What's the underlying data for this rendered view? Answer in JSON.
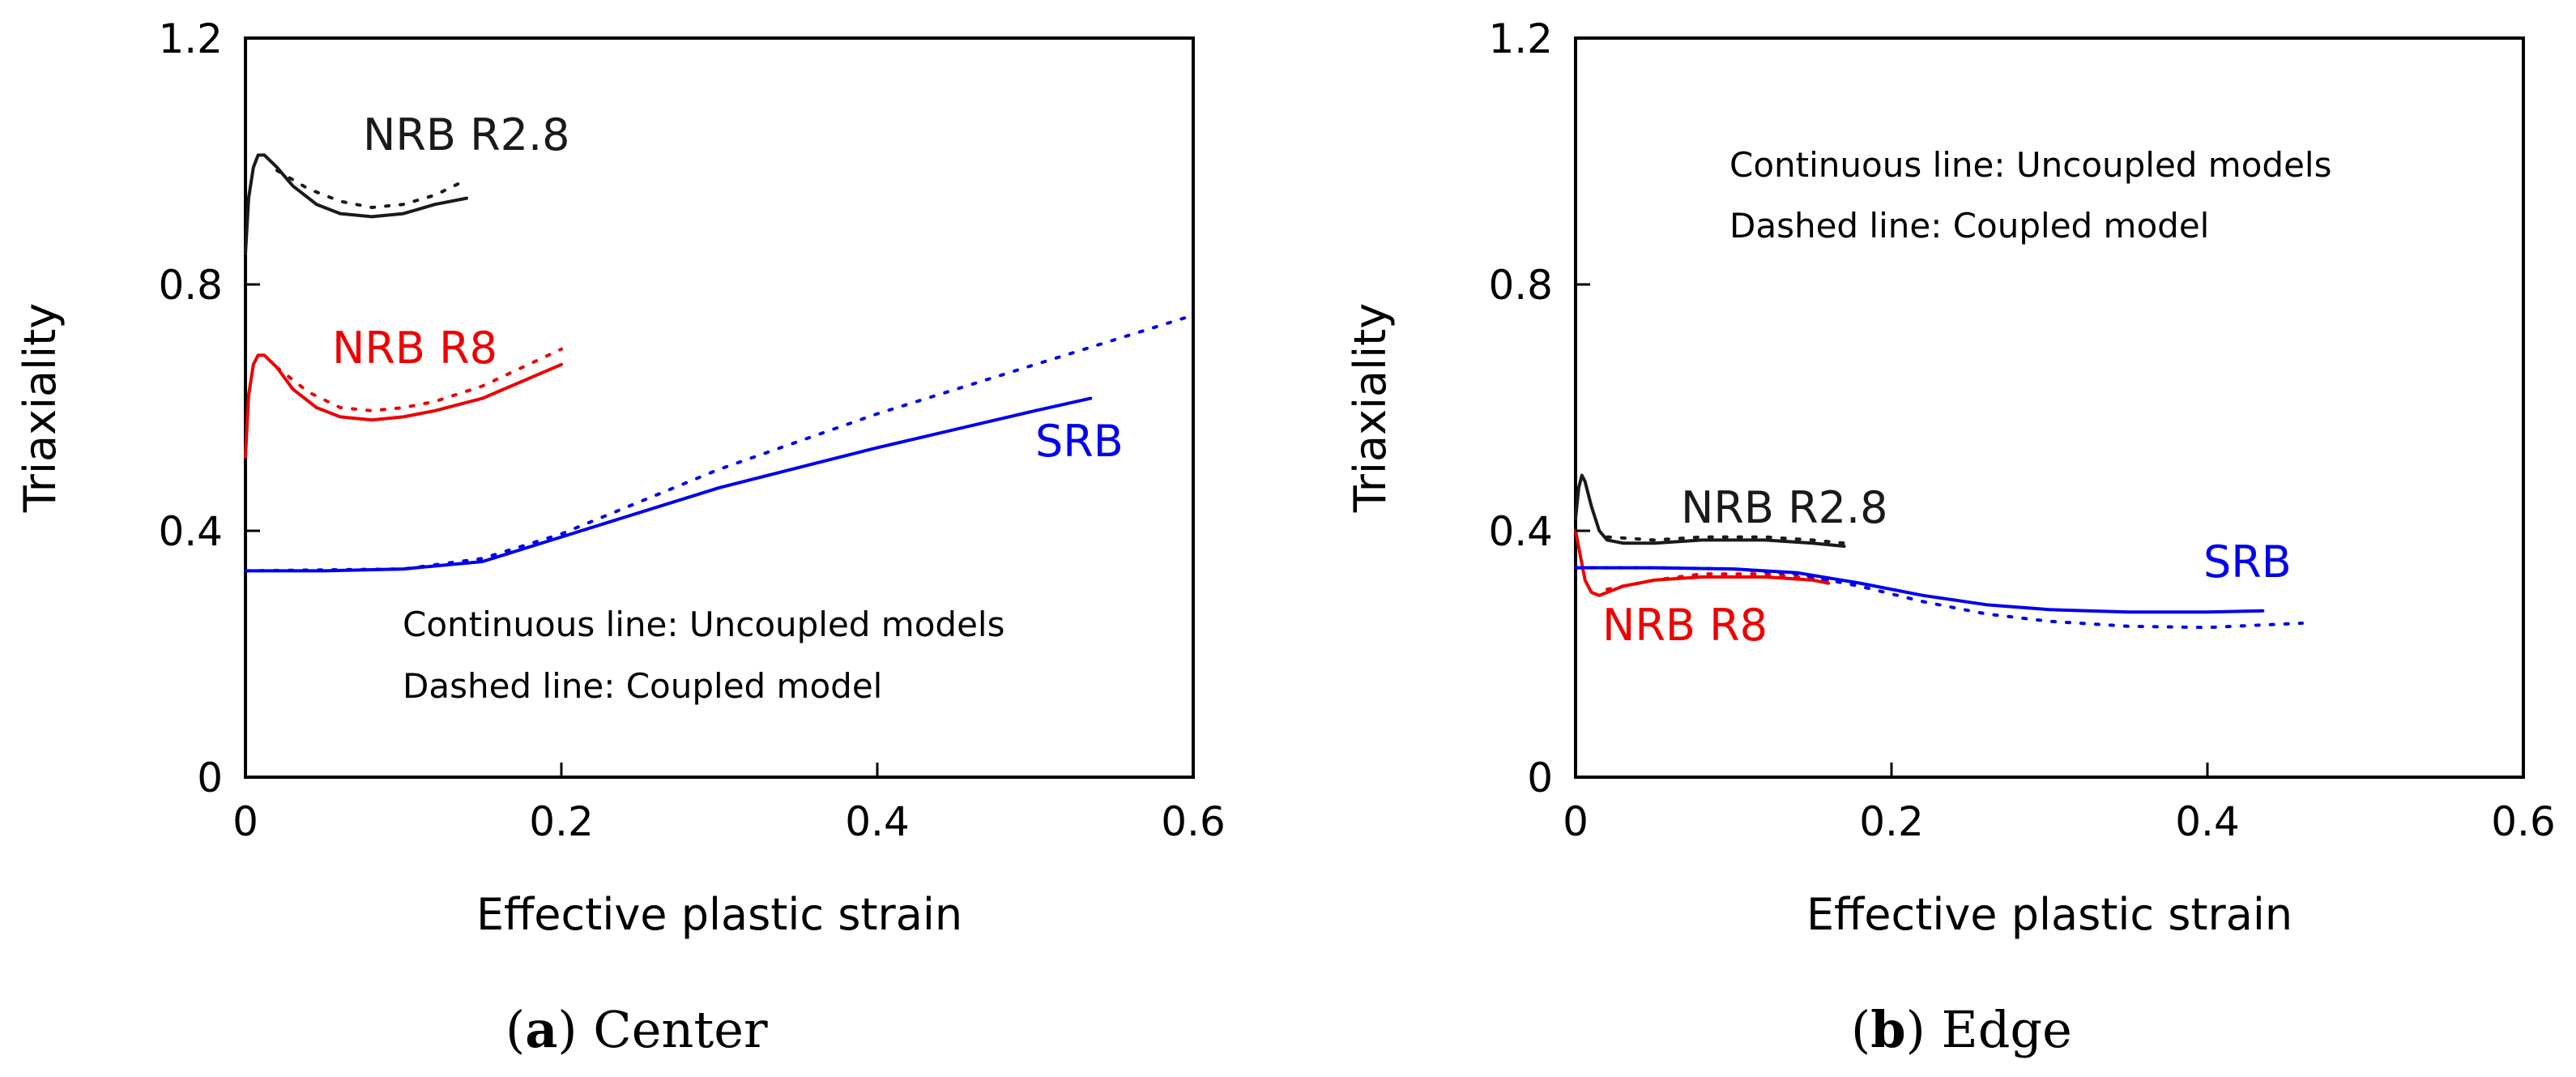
{
  "chart_data": [
    {
      "type": "line",
      "caption_letter": "a",
      "caption_text": "Center",
      "xlabel": "Effective plastic strain",
      "ylabel": "Triaxiality",
      "xlim": [
        0,
        0.6
      ],
      "ylim": [
        0,
        1.2
      ],
      "xticks": [
        "0",
        "0.2",
        "0.4",
        "0.6"
      ],
      "yticks": [
        "0",
        "0.4",
        "0.8",
        "1.2"
      ],
      "annotation_lines": [
        "Continuous line: Uncoupled models",
        "Dashed line: Coupled model"
      ],
      "series": [
        {
          "name": "NRB R2.8",
          "color": "#1a1a1a",
          "uncoupled": {
            "x": [
              0,
              0.002,
              0.005,
              0.008,
              0.012,
              0.02,
              0.03,
              0.045,
              0.06,
              0.08,
              0.1,
              0.12,
              0.14
            ],
            "y": [
              0.85,
              0.94,
              0.99,
              1.01,
              1.01,
              0.99,
              0.96,
              0.93,
              0.915,
              0.91,
              0.915,
              0.93,
              0.94
            ]
          },
          "coupled": {
            "x": [
              0.02,
              0.04,
              0.06,
              0.08,
              0.1,
              0.12,
              0.14
            ],
            "y": [
              0.985,
              0.955,
              0.935,
              0.925,
              0.93,
              0.945,
              0.97
            ]
          }
        },
        {
          "name": "NRB R8",
          "color": "#ee0000",
          "uncoupled": {
            "x": [
              0,
              0.002,
              0.005,
              0.008,
              0.012,
              0.02,
              0.03,
              0.045,
              0.06,
              0.08,
              0.1,
              0.12,
              0.15,
              0.2
            ],
            "y": [
              0.52,
              0.62,
              0.67,
              0.685,
              0.685,
              0.665,
              0.63,
              0.6,
              0.585,
              0.58,
              0.585,
              0.595,
              0.615,
              0.67
            ]
          },
          "coupled": {
            "x": [
              0.02,
              0.04,
              0.06,
              0.08,
              0.1,
              0.12,
              0.15,
              0.2
            ],
            "y": [
              0.665,
              0.625,
              0.6,
              0.595,
              0.6,
              0.61,
              0.635,
              0.695
            ]
          }
        },
        {
          "name": "SRB",
          "color": "#0000ee",
          "uncoupled": {
            "x": [
              0,
              0.05,
              0.1,
              0.15,
              0.2,
              0.3,
              0.4,
              0.5,
              0.535
            ],
            "y": [
              0.335,
              0.335,
              0.338,
              0.35,
              0.39,
              0.47,
              0.535,
              0.595,
              0.615
            ]
          },
          "coupled": {
            "x": [
              0,
              0.1,
              0.15,
              0.2,
              0.3,
              0.4,
              0.5,
              0.6
            ],
            "y": [
              0.335,
              0.338,
              0.355,
              0.395,
              0.5,
              0.59,
              0.67,
              0.75
            ]
          }
        }
      ]
    },
    {
      "type": "line",
      "caption_letter": "b",
      "caption_text": "Edge",
      "xlabel": "Effective plastic strain",
      "ylabel": "Triaxiality",
      "xlim": [
        0,
        0.6
      ],
      "ylim": [
        0,
        1.2
      ],
      "xticks": [
        "0",
        "0.2",
        "0.4",
        "0.6"
      ],
      "yticks": [
        "0",
        "0.4",
        "0.8",
        "1.2"
      ],
      "annotation_lines": [
        "Continuous line: Uncoupled models",
        "Dashed line: Coupled model"
      ],
      "series": [
        {
          "name": "NRB R2.8",
          "color": "#1a1a1a",
          "uncoupled": {
            "x": [
              0,
              0.002,
              0.004,
              0.006,
              0.01,
              0.015,
              0.02,
              0.03,
              0.05,
              0.08,
              0.12,
              0.15,
              0.17
            ],
            "y": [
              0.42,
              0.47,
              0.49,
              0.48,
              0.44,
              0.4,
              0.385,
              0.38,
              0.38,
              0.385,
              0.385,
              0.38,
              0.375
            ]
          },
          "coupled": {
            "x": [
              0.02,
              0.05,
              0.08,
              0.12,
              0.15,
              0.17
            ],
            "y": [
              0.39,
              0.385,
              0.39,
              0.39,
              0.385,
              0.38
            ]
          }
        },
        {
          "name": "NRB R8",
          "color": "#ee0000",
          "uncoupled": {
            "x": [
              0,
              0.003,
              0.006,
              0.01,
              0.015,
              0.02,
              0.03,
              0.05,
              0.08,
              0.1,
              0.12,
              0.15,
              0.16
            ],
            "y": [
              0.4,
              0.36,
              0.32,
              0.3,
              0.295,
              0.3,
              0.31,
              0.32,
              0.325,
              0.325,
              0.325,
              0.32,
              0.315
            ]
          },
          "coupled": {
            "x": [
              0.02,
              0.05,
              0.08,
              0.12,
              0.16
            ],
            "y": [
              0.305,
              0.32,
              0.33,
              0.33,
              0.32
            ]
          }
        },
        {
          "name": "SRB",
          "color": "#0000ee",
          "uncoupled": {
            "x": [
              0,
              0.05,
              0.1,
              0.14,
              0.18,
              0.22,
              0.26,
              0.3,
              0.35,
              0.4,
              0.435
            ],
            "y": [
              0.34,
              0.34,
              0.338,
              0.332,
              0.315,
              0.295,
              0.28,
              0.272,
              0.268,
              0.268,
              0.27
            ]
          },
          "coupled": {
            "x": [
              0,
              0.05,
              0.1,
              0.14,
              0.18,
              0.22,
              0.26,
              0.3,
              0.35,
              0.4,
              0.46
            ],
            "y": [
              0.34,
              0.34,
              0.338,
              0.33,
              0.31,
              0.285,
              0.265,
              0.253,
              0.245,
              0.243,
              0.25
            ]
          }
        }
      ]
    }
  ]
}
